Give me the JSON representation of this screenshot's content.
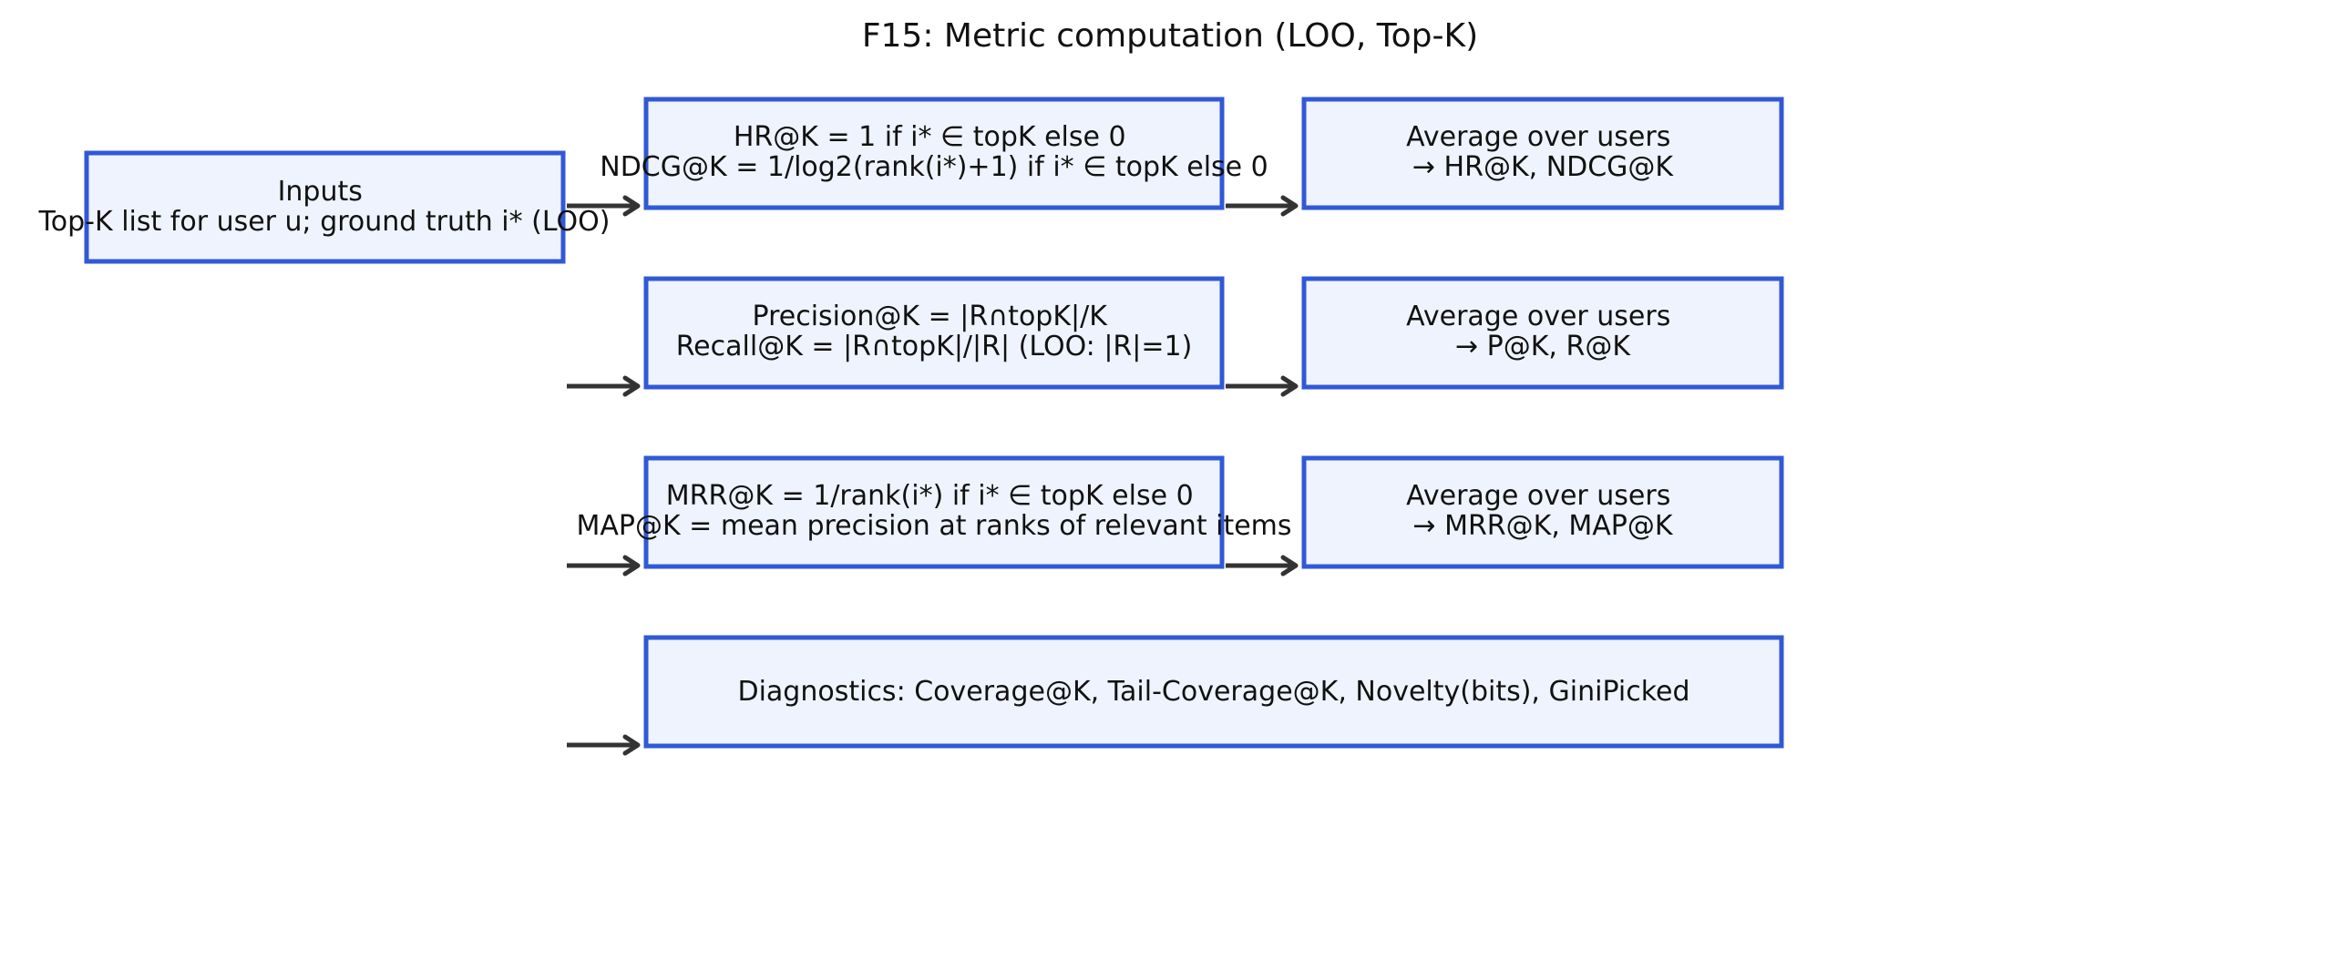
{
  "diagram": {
    "title": "F15: Metric computation (LOO, Top-K)",
    "colors": {
      "box_fill": "#eef3fd",
      "box_stroke": "#3159d6",
      "arrow": "#333333",
      "text": "#111111"
    },
    "boxes": {
      "inputs": [
        "Inputs",
        "Top-K list for user u; ground truth i* (LOO)"
      ],
      "hr_ndcg": [
        "HR@K  = 1 if i* ∈ topK else 0",
        "NDCG@K = 1/log2(rank(i*)+1) if i* ∈ topK else 0"
      ],
      "avg_hr_ndcg": [
        "Average over users",
        "→ HR@K, NDCG@K"
      ],
      "precision_recall": [
        "Precision@K = |R∩topK|/K",
        "Recall@K = |R∩topK|/|R|  (LOO: |R|=1)"
      ],
      "avg_p_r": [
        "Average over users",
        "→ P@K, R@K"
      ],
      "mrr_map": [
        "MRR@K = 1/rank(i*) if i* ∈ topK else 0",
        "MAP@K = mean precision at ranks of relevant items"
      ],
      "avg_mrr_map": [
        "Average over users",
        "→ MRR@K, MAP@K"
      ],
      "diagnostics": [
        "Diagnostics: Coverage@K, Tail-Coverage@K, Novelty(bits), GiniPicked"
      ]
    }
  }
}
